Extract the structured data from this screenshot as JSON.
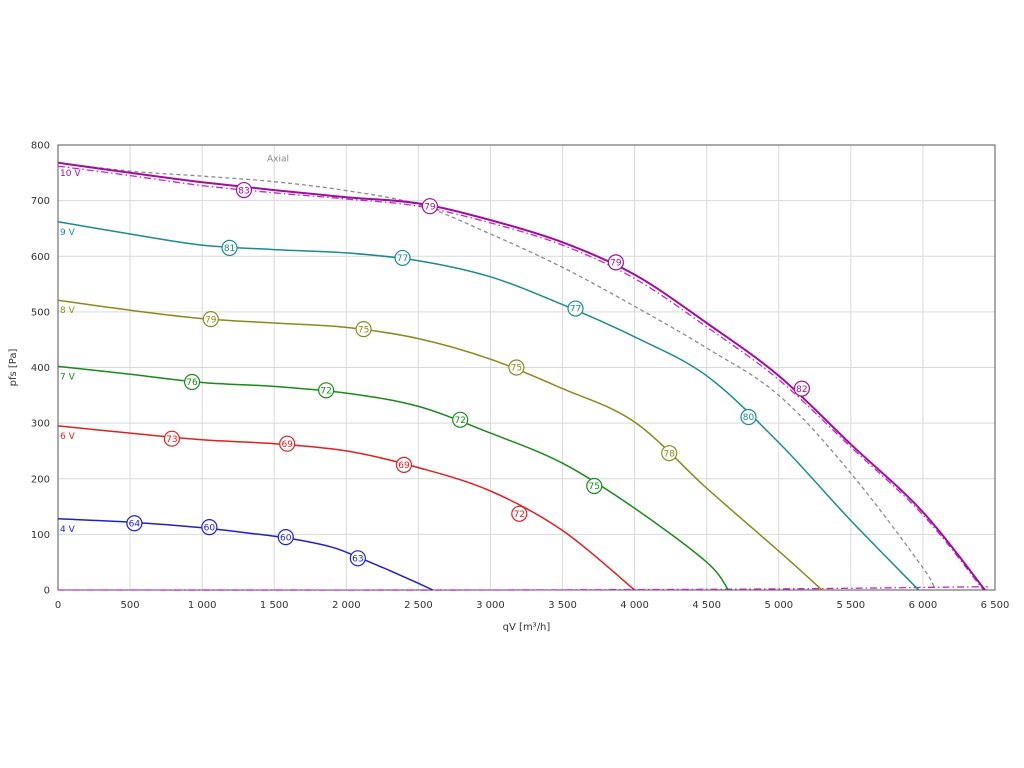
{
  "chart_data": {
    "type": "line",
    "xlabel": "qV [m³/h]",
    "ylabel": "pfs [Pa]",
    "xlim": [
      0,
      6500
    ],
    "ylim": [
      0,
      800
    ],
    "x_ticks": [
      0,
      500,
      1000,
      1500,
      2000,
      2500,
      3000,
      3500,
      4000,
      4500,
      5000,
      5500,
      6000,
      6500
    ],
    "x_tick_labels": [
      "0",
      "500",
      "1 000",
      "1 500",
      "2 000",
      "2 500",
      "3 000",
      "3 500",
      "4 000",
      "4 500",
      "5 000",
      "5 500",
      "6 000",
      "6 500"
    ],
    "y_ticks": [
      0,
      100,
      200,
      300,
      400,
      500,
      600,
      700,
      800
    ],
    "y_tick_labels": [
      "0",
      "100",
      "200",
      "300",
      "400",
      "500",
      "600",
      "700",
      "800"
    ],
    "grid": true,
    "annotations": [
      {
        "text": "Axial",
        "x": 1450,
        "y": 770
      }
    ],
    "series": [
      {
        "name": "4 V",
        "color": "#1f1fcc",
        "points": [
          [
            0,
            128
          ],
          [
            500,
            122
          ],
          [
            1000,
            112
          ],
          [
            1300,
            103
          ],
          [
            1600,
            93
          ],
          [
            1900,
            77
          ],
          [
            2100,
            57
          ],
          [
            2300,
            35
          ],
          [
            2500,
            12
          ],
          [
            2600,
            0
          ]
        ],
        "markers": [
          {
            "x": 530,
            "y": 120,
            "label": "64"
          },
          {
            "x": 1050,
            "y": 113,
            "label": "60"
          },
          {
            "x": 1580,
            "y": 95,
            "label": "60"
          },
          {
            "x": 2080,
            "y": 57,
            "label": "63"
          }
        ]
      },
      {
        "name": "6 V",
        "color": "#e02020",
        "points": [
          [
            0,
            295
          ],
          [
            500,
            282
          ],
          [
            1000,
            270
          ],
          [
            1500,
            263
          ],
          [
            2000,
            250
          ],
          [
            2500,
            220
          ],
          [
            3000,
            178
          ],
          [
            3500,
            107
          ],
          [
            4000,
            0
          ]
        ],
        "markers": [
          {
            "x": 790,
            "y": 272,
            "label": "73"
          },
          {
            "x": 1590,
            "y": 263,
            "label": "69"
          },
          {
            "x": 2400,
            "y": 225,
            "label": "69"
          },
          {
            "x": 3200,
            "y": 137,
            "label": "72"
          }
        ]
      },
      {
        "name": "7 V",
        "color": "#1a8a1a",
        "points": [
          [
            0,
            402
          ],
          [
            500,
            388
          ],
          [
            1000,
            373
          ],
          [
            1500,
            366
          ],
          [
            2000,
            354
          ],
          [
            2500,
            330
          ],
          [
            3000,
            282
          ],
          [
            3500,
            228
          ],
          [
            4000,
            147
          ],
          [
            4500,
            50
          ],
          [
            4650,
            0
          ]
        ],
        "markers": [
          {
            "x": 930,
            "y": 374,
            "label": "76"
          },
          {
            "x": 1860,
            "y": 359,
            "label": "72"
          },
          {
            "x": 2790,
            "y": 306,
            "label": "72"
          },
          {
            "x": 3720,
            "y": 187,
            "label": "75"
          }
        ]
      },
      {
        "name": "8 V",
        "color": "#8a8a1a",
        "points": [
          [
            0,
            521
          ],
          [
            500,
            503
          ],
          [
            1000,
            488
          ],
          [
            1500,
            480
          ],
          [
            2000,
            472
          ],
          [
            2500,
            452
          ],
          [
            3000,
            415
          ],
          [
            3500,
            362
          ],
          [
            4000,
            302
          ],
          [
            4500,
            183
          ],
          [
            5000,
            70
          ],
          [
            5300,
            0
          ]
        ],
        "markers": [
          {
            "x": 1060,
            "y": 487,
            "label": "79"
          },
          {
            "x": 2120,
            "y": 469,
            "label": "75"
          },
          {
            "x": 3180,
            "y": 400,
            "label": "75"
          },
          {
            "x": 4240,
            "y": 246,
            "label": "78"
          }
        ]
      },
      {
        "name": "9 V",
        "color": "#1a8c8c",
        "points": [
          [
            0,
            662
          ],
          [
            500,
            640
          ],
          [
            1000,
            620
          ],
          [
            1500,
            612
          ],
          [
            2000,
            606
          ],
          [
            2500,
            592
          ],
          [
            3000,
            563
          ],
          [
            3500,
            513
          ],
          [
            4000,
            455
          ],
          [
            4500,
            385
          ],
          [
            5000,
            265
          ],
          [
            5500,
            125
          ],
          [
            5970,
            0
          ]
        ],
        "markers": [
          {
            "x": 1190,
            "y": 615,
            "label": "81"
          },
          {
            "x": 2390,
            "y": 597,
            "label": "77"
          },
          {
            "x": 3590,
            "y": 506,
            "label": "77"
          },
          {
            "x": 4790,
            "y": 311,
            "label": "80"
          }
        ]
      },
      {
        "name": "10 V",
        "color": "#9b119b",
        "points": [
          [
            0,
            768
          ],
          [
            500,
            750
          ],
          [
            1000,
            733
          ],
          [
            1500,
            719
          ],
          [
            2000,
            706
          ],
          [
            2500,
            695
          ],
          [
            3000,
            665
          ],
          [
            3500,
            625
          ],
          [
            4000,
            567
          ],
          [
            4500,
            480
          ],
          [
            5000,
            385
          ],
          [
            5500,
            262
          ],
          [
            6000,
            140
          ],
          [
            6430,
            0
          ]
        ],
        "markers": [
          {
            "x": 1290,
            "y": 719,
            "label": "83"
          },
          {
            "x": 2580,
            "y": 690,
            "label": "79"
          },
          {
            "x": 3870,
            "y": 589,
            "label": "79"
          },
          {
            "x": 5160,
            "y": 362,
            "label": "82"
          }
        ]
      }
    ],
    "reference_lines": [
      {
        "style": "dash",
        "color": "#8c8c8c",
        "points": [
          [
            0,
            768
          ],
          [
            500,
            753
          ],
          [
            1000,
            744
          ],
          [
            1500,
            734
          ],
          [
            2000,
            718
          ],
          [
            2500,
            693
          ],
          [
            3000,
            640
          ],
          [
            3500,
            580
          ],
          [
            4000,
            510
          ],
          [
            4500,
            435
          ],
          [
            5000,
            350
          ],
          [
            5500,
            210
          ],
          [
            6000,
            40
          ],
          [
            6080,
            0
          ]
        ]
      },
      {
        "style": "dashdot",
        "color": "#cc22cc",
        "points": [
          [
            0,
            762
          ],
          [
            500,
            745
          ],
          [
            1000,
            727
          ],
          [
            1500,
            714
          ],
          [
            2000,
            703
          ],
          [
            2500,
            690
          ],
          [
            3000,
            660
          ],
          [
            3500,
            620
          ],
          [
            4000,
            560
          ],
          [
            4500,
            473
          ],
          [
            5000,
            378
          ],
          [
            5500,
            257
          ],
          [
            6000,
            135
          ],
          [
            6420,
            0
          ]
        ]
      },
      {
        "style": "dashdot",
        "color": "#cc22cc",
        "points": [
          [
            0,
            0
          ],
          [
            3000,
            0
          ],
          [
            5000,
            2
          ],
          [
            6450,
            6
          ]
        ]
      }
    ]
  }
}
